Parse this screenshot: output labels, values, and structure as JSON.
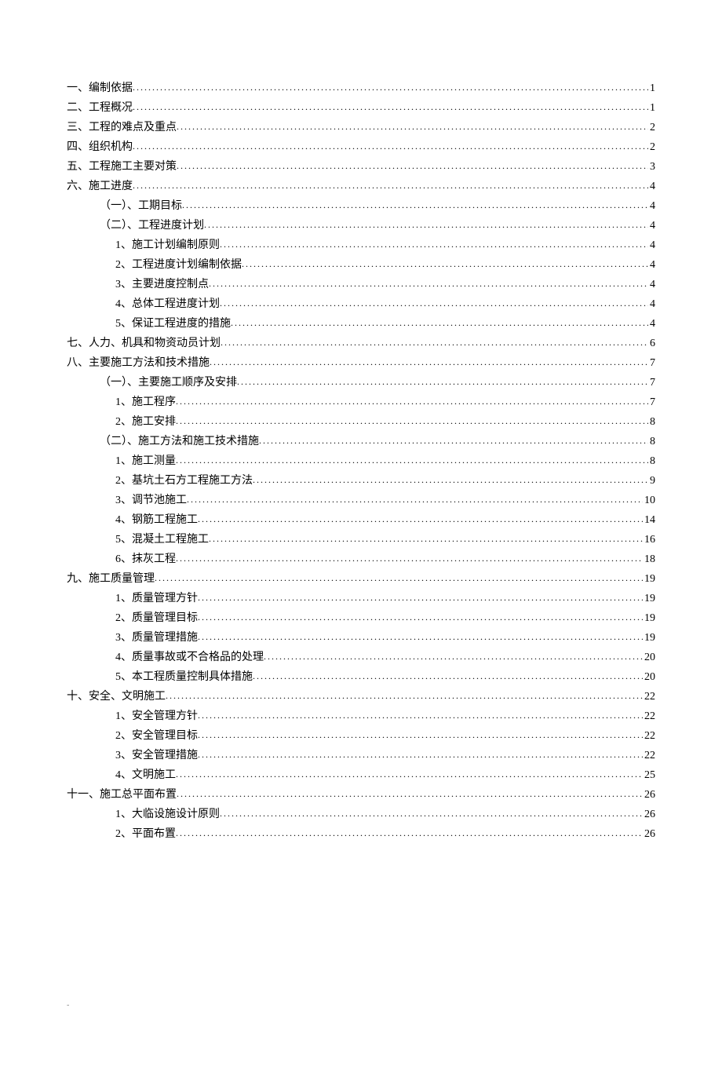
{
  "toc": {
    "entries": [
      {
        "level": 1,
        "text": "一、编制依据",
        "page": "1"
      },
      {
        "level": 1,
        "text": "二、工程概况",
        "page": "1"
      },
      {
        "level": 1,
        "text": "三、工程的难点及重点",
        "page": "2"
      },
      {
        "level": 1,
        "text": "四、组织机构",
        "page": "2"
      },
      {
        "level": 1,
        "text": "五、工程施工主要对策",
        "page": "3"
      },
      {
        "level": 1,
        "text": "六、施工进度",
        "page": "4"
      },
      {
        "level": 2,
        "text": "（一）、工期目标",
        "page": "4"
      },
      {
        "level": 2,
        "text": "（二）、工程进度计划",
        "page": "4"
      },
      {
        "level": 3,
        "text": "1、施工计划编制原则",
        "page": "4"
      },
      {
        "level": 3,
        "text": "2、工程进度计划编制依据",
        "page": "4"
      },
      {
        "level": 3,
        "text": "3、主要进度控制点",
        "page": "4"
      },
      {
        "level": 3,
        "text": "4、总体工程进度计划",
        "page": "4"
      },
      {
        "level": 3,
        "text": "5、保证工程进度的措施",
        "page": "4"
      },
      {
        "level": 1,
        "text": "七、人力、机具和物资动员计划",
        "page": "6"
      },
      {
        "level": 1,
        "text": "八、主要施工方法和技术措施",
        "page": "7"
      },
      {
        "level": 2,
        "text": "（一）、主要施工顺序及安排",
        "page": "7"
      },
      {
        "level": 3,
        "text": "1、施工程序",
        "page": "7"
      },
      {
        "level": 3,
        "text": "2、施工安排",
        "page": "8"
      },
      {
        "level": 2,
        "text": "（二）、施工方法和施工技术措施",
        "page": "8"
      },
      {
        "level": 3,
        "text": "1、施工测量",
        "page": "8"
      },
      {
        "level": 3,
        "text": "2、基坑土石方工程施工方法",
        "page": "9"
      },
      {
        "level": 3,
        "text": "3、调节池施工",
        "page": "10"
      },
      {
        "level": 3,
        "text": "4、钢筋工程施工",
        "page": "14"
      },
      {
        "level": 3,
        "text": "5、混凝土工程施工",
        "page": "16"
      },
      {
        "level": 3,
        "text": "6、抹灰工程",
        "page": "18"
      },
      {
        "level": 1,
        "text": "九、施工质量管理",
        "page": "19"
      },
      {
        "level": 3,
        "text": "1、质量管理方针",
        "page": "19"
      },
      {
        "level": 3,
        "text": "2、质量管理目标",
        "page": "19"
      },
      {
        "level": 3,
        "text": "3、质量管理措施",
        "page": "19"
      },
      {
        "level": 3,
        "text": "4、质量事故或不合格品的处理",
        "page": "20"
      },
      {
        "level": 3,
        "text": "5、本工程质量控制具体措施",
        "page": "20"
      },
      {
        "level": 1,
        "text": "十、安全、文明施工",
        "page": "22"
      },
      {
        "level": 3,
        "text": "1、安全管理方针",
        "page": "22"
      },
      {
        "level": 3,
        "text": "2、安全管理目标",
        "page": "22"
      },
      {
        "level": 3,
        "text": "3、安全管理措施",
        "page": "22"
      },
      {
        "level": 3,
        "text": "4、文明施工",
        "page": "25"
      },
      {
        "level": 1,
        "text": "十一、施工总平面布置",
        "page": "26"
      },
      {
        "level": 3,
        "text": "1、大临设施设计原则",
        "page": "26"
      },
      {
        "level": 3,
        "text": "2、平面布置",
        "page": "26"
      }
    ]
  },
  "footer": {
    "mark": "-"
  }
}
